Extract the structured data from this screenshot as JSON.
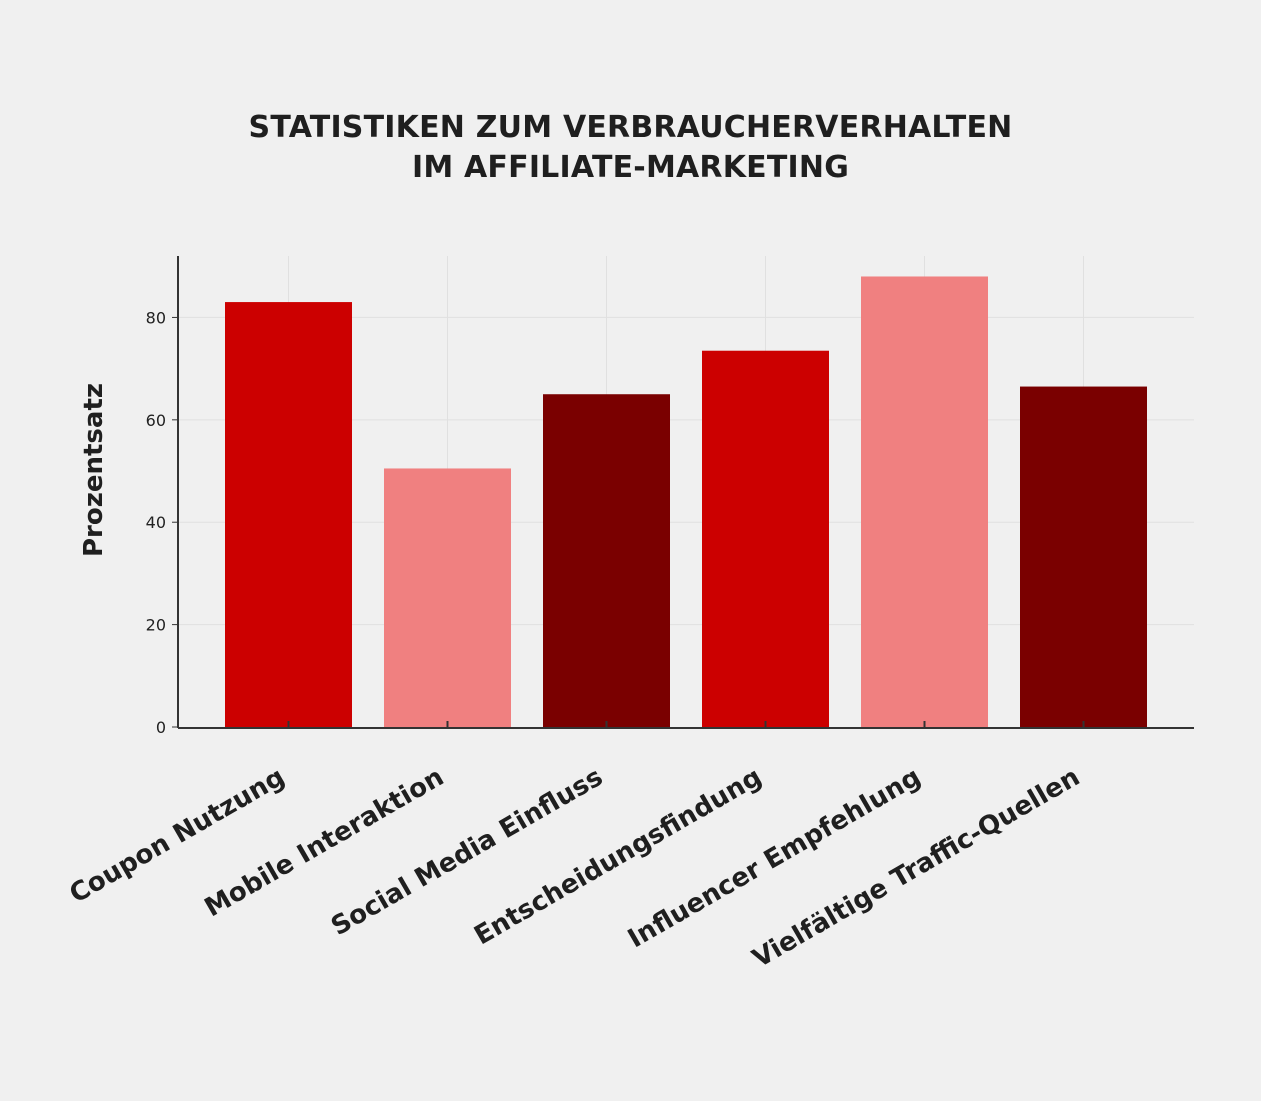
{
  "chart_data": {
    "type": "bar",
    "title_lines": [
      "STATISTIKEN ZUM VERBRAUCHERVERHALTEN",
      "IM AFFILIATE-MARKETING"
    ],
    "xlabel": "",
    "ylabel": "Prozentsatz",
    "categories": [
      "Coupon Nutzung",
      "Mobile Interaktion",
      "Social Media Einfluss",
      "Entscheidungsfindung",
      "Influencer Empfehlung",
      "Vielfältige Traffic-Quellen"
    ],
    "values": [
      83,
      50.5,
      65,
      73.5,
      88,
      66.5
    ],
    "bar_colors": [
      "#cc0000",
      "#f08080",
      "#7a0000",
      "#cc0000",
      "#f08080",
      "#7a0000"
    ],
    "ylim": [
      0,
      92
    ],
    "yticks": [
      0,
      20,
      40,
      60,
      80
    ],
    "grid": true,
    "legend": "none"
  }
}
